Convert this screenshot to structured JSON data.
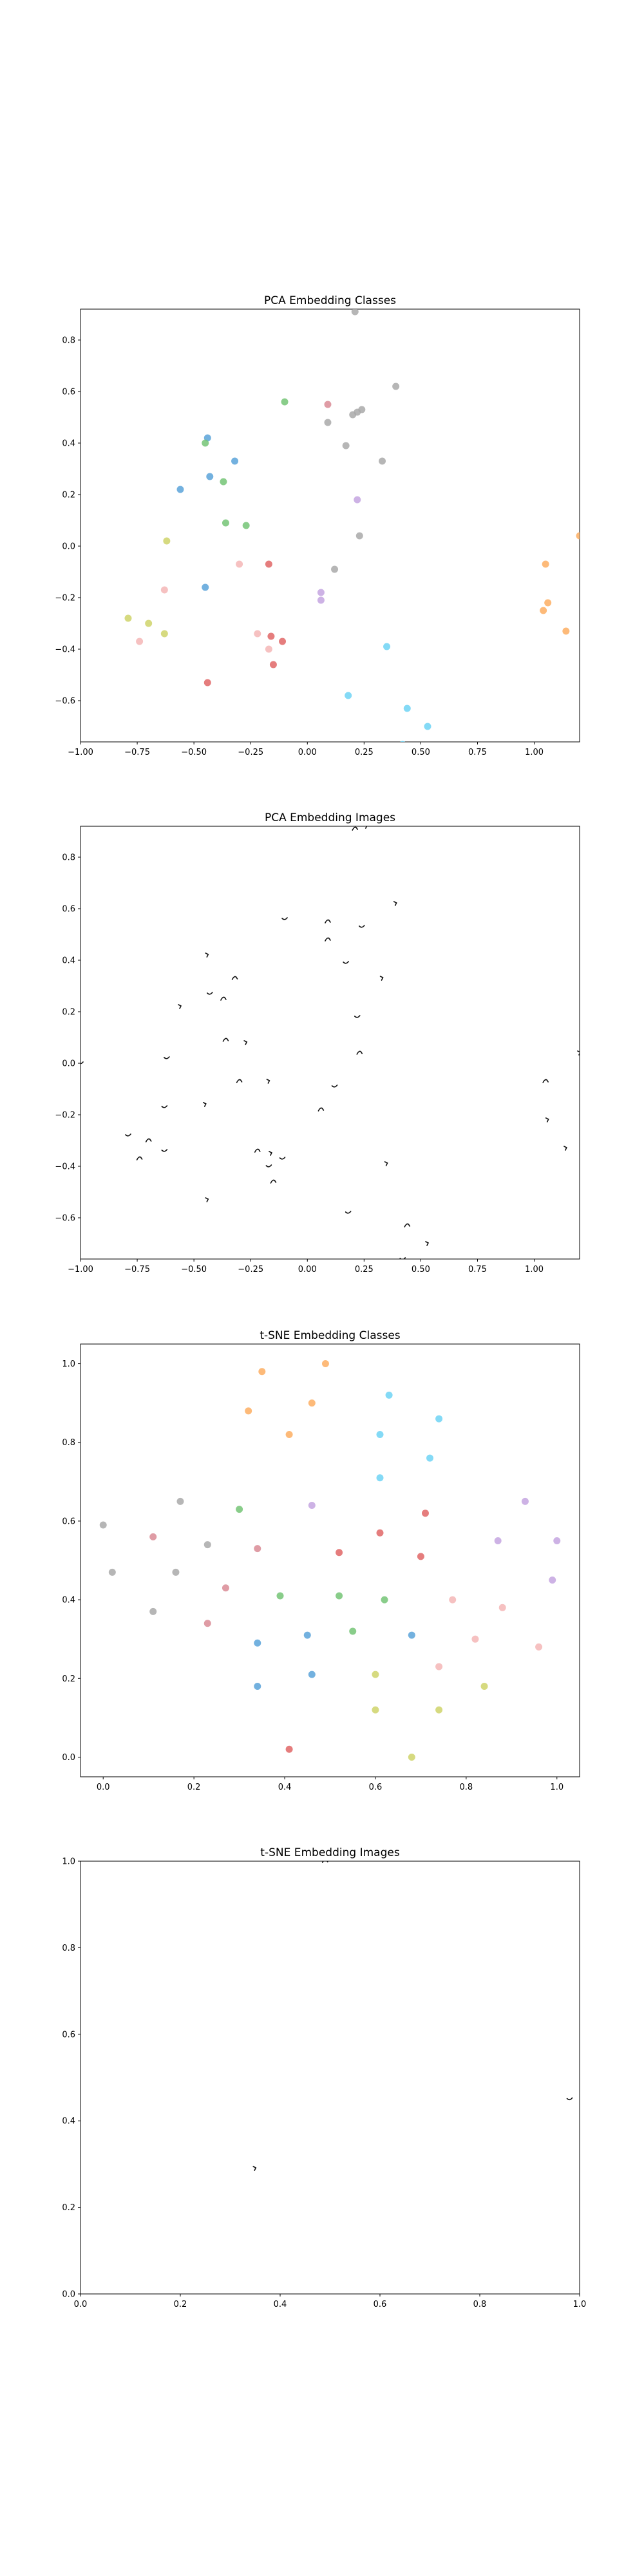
{
  "figure": {
    "background": "#ffffff",
    "axis_color": "#000000"
  },
  "chart_data": [
    {
      "id": "pca-classes",
      "type": "scatter",
      "title": "PCA Embedding Classes",
      "xlim": [
        -1.0,
        1.2
      ],
      "ylim": [
        -0.76,
        0.92
      ],
      "xticks": [
        -1.0,
        -0.75,
        -0.5,
        -0.25,
        0.0,
        0.25,
        0.5,
        0.75,
        1.0
      ],
      "xticklabels": [
        "−1.00",
        "−0.75",
        "−0.50",
        "−0.25",
        "0.00",
        "0.25",
        "0.50",
        "0.75",
        "1.00"
      ],
      "yticks": [
        -0.6,
        -0.4,
        -0.2,
        0.0,
        0.2,
        0.4,
        0.6,
        0.8
      ],
      "yticklabels": [
        "−0.6",
        "−0.4",
        "−0.2",
        "0.0",
        "0.2",
        "0.4",
        "0.6",
        "0.8"
      ],
      "grid": false,
      "marker": "circle",
      "points": [
        {
          "x": 0.21,
          "y": 0.91,
          "color": "#a9a9a9"
        },
        {
          "x": -0.1,
          "y": 0.56,
          "color": "#74c476"
        },
        {
          "x": 0.09,
          "y": 0.55,
          "color": "#d98b95"
        },
        {
          "x": 0.39,
          "y": 0.62,
          "color": "#a9a9a9"
        },
        {
          "x": 0.24,
          "y": 0.53,
          "color": "#a9a9a9"
        },
        {
          "x": 0.22,
          "y": 0.52,
          "color": "#a9a9a9"
        },
        {
          "x": 0.2,
          "y": 0.51,
          "color": "#a9a9a9"
        },
        {
          "x": 0.09,
          "y": 0.48,
          "color": "#a9a9a9"
        },
        {
          "x": -0.44,
          "y": 0.42,
          "color": "#5ba3d9"
        },
        {
          "x": -0.45,
          "y": 0.4,
          "color": "#74c476"
        },
        {
          "x": 0.17,
          "y": 0.39,
          "color": "#a9a9a9"
        },
        {
          "x": -0.32,
          "y": 0.33,
          "color": "#5ba3d9"
        },
        {
          "x": 0.33,
          "y": 0.33,
          "color": "#a9a9a9"
        },
        {
          "x": -0.43,
          "y": 0.27,
          "color": "#5ba3d9"
        },
        {
          "x": -0.37,
          "y": 0.25,
          "color": "#74c476"
        },
        {
          "x": -0.56,
          "y": 0.22,
          "color": "#5ba3d9"
        },
        {
          "x": 0.22,
          "y": 0.18,
          "color": "#c4a5e0"
        },
        {
          "x": -0.36,
          "y": 0.09,
          "color": "#74c476"
        },
        {
          "x": -0.27,
          "y": 0.08,
          "color": "#74c476"
        },
        {
          "x": -0.62,
          "y": 0.02,
          "color": "#cfd36a"
        },
        {
          "x": 0.23,
          "y": 0.04,
          "color": "#a9a9a9"
        },
        {
          "x": 1.2,
          "y": 0.04,
          "color": "#fdae61"
        },
        {
          "x": -0.3,
          "y": -0.07,
          "color": "#f4b6b6"
        },
        {
          "x": -0.17,
          "y": -0.07,
          "color": "#e06666"
        },
        {
          "x": 0.12,
          "y": -0.09,
          "color": "#a9a9a9"
        },
        {
          "x": 1.05,
          "y": -0.07,
          "color": "#fdae61"
        },
        {
          "x": -0.45,
          "y": -0.16,
          "color": "#5ba3d9"
        },
        {
          "x": -0.63,
          "y": -0.17,
          "color": "#f4b6b6"
        },
        {
          "x": 0.06,
          "y": -0.18,
          "color": "#c4a5e0"
        },
        {
          "x": 0.06,
          "y": -0.21,
          "color": "#c4a5e0"
        },
        {
          "x": 1.06,
          "y": -0.22,
          "color": "#fdae61"
        },
        {
          "x": 1.04,
          "y": -0.25,
          "color": "#fdae61"
        },
        {
          "x": -0.79,
          "y": -0.28,
          "color": "#cfd36a"
        },
        {
          "x": -0.7,
          "y": -0.3,
          "color": "#cfd36a"
        },
        {
          "x": 1.14,
          "y": -0.33,
          "color": "#fdae61"
        },
        {
          "x": -0.63,
          "y": -0.34,
          "color": "#cfd36a"
        },
        {
          "x": -0.22,
          "y": -0.34,
          "color": "#f4b6b6"
        },
        {
          "x": -0.16,
          "y": -0.35,
          "color": "#e06666"
        },
        {
          "x": -0.11,
          "y": -0.37,
          "color": "#e06666"
        },
        {
          "x": -0.74,
          "y": -0.37,
          "color": "#f4b6b6"
        },
        {
          "x": 0.35,
          "y": -0.39,
          "color": "#6fd3f5"
        },
        {
          "x": -0.17,
          "y": -0.4,
          "color": "#f4b6b6"
        },
        {
          "x": -0.15,
          "y": -0.46,
          "color": "#e06666"
        },
        {
          "x": -0.44,
          "y": -0.53,
          "color": "#e06666"
        },
        {
          "x": 0.18,
          "y": -0.58,
          "color": "#6fd3f5"
        },
        {
          "x": 0.44,
          "y": -0.63,
          "color": "#6fd3f5"
        },
        {
          "x": 0.53,
          "y": -0.7,
          "color": "#6fd3f5"
        },
        {
          "x": 0.42,
          "y": -0.77,
          "color": "#6fd3f5"
        }
      ]
    },
    {
      "id": "pca-images",
      "type": "scatter",
      "title": "PCA Embedding Images",
      "xlim": [
        -1.0,
        1.2
      ],
      "ylim": [
        -0.76,
        0.92
      ],
      "xticks": [
        -1.0,
        -0.75,
        -0.5,
        -0.25,
        0.0,
        0.25,
        0.5,
        0.75,
        1.0
      ],
      "xticklabels": [
        "−1.00",
        "−0.75",
        "−0.50",
        "−0.25",
        "0.00",
        "0.25",
        "0.50",
        "0.75",
        "1.00"
      ],
      "yticks": [
        -0.6,
        -0.4,
        -0.2,
        0.0,
        0.2,
        0.4,
        0.6,
        0.8
      ],
      "yticklabels": [
        "−0.6",
        "−0.4",
        "−0.2",
        "0.0",
        "0.2",
        "0.4",
        "0.6",
        "0.8"
      ],
      "grid": false,
      "marker": "image-thumbnail",
      "points": [
        {
          "x": 0.21,
          "y": 0.91
        },
        {
          "x": 0.26,
          "y": 0.92
        },
        {
          "x": -0.1,
          "y": 0.56
        },
        {
          "x": 0.09,
          "y": 0.55
        },
        {
          "x": 0.39,
          "y": 0.62
        },
        {
          "x": 0.24,
          "y": 0.53
        },
        {
          "x": 0.09,
          "y": 0.48
        },
        {
          "x": -0.44,
          "y": 0.42
        },
        {
          "x": 0.17,
          "y": 0.39
        },
        {
          "x": -0.32,
          "y": 0.33
        },
        {
          "x": 0.33,
          "y": 0.33
        },
        {
          "x": -0.43,
          "y": 0.27
        },
        {
          "x": -0.37,
          "y": 0.25
        },
        {
          "x": -0.56,
          "y": 0.22
        },
        {
          "x": 0.22,
          "y": 0.18
        },
        {
          "x": -0.36,
          "y": 0.09
        },
        {
          "x": -0.27,
          "y": 0.08
        },
        {
          "x": -0.62,
          "y": 0.02
        },
        {
          "x": 0.23,
          "y": 0.04
        },
        {
          "x": 1.2,
          "y": 0.04
        },
        {
          "x": -1.0,
          "y": 0.0
        },
        {
          "x": -0.3,
          "y": -0.07
        },
        {
          "x": -0.17,
          "y": -0.07
        },
        {
          "x": 0.12,
          "y": -0.09
        },
        {
          "x": 1.05,
          "y": -0.07
        },
        {
          "x": -0.45,
          "y": -0.16
        },
        {
          "x": -0.63,
          "y": -0.17
        },
        {
          "x": 0.06,
          "y": -0.18
        },
        {
          "x": 1.06,
          "y": -0.22
        },
        {
          "x": -0.79,
          "y": -0.28
        },
        {
          "x": -0.7,
          "y": -0.3
        },
        {
          "x": 1.14,
          "y": -0.33
        },
        {
          "x": -0.63,
          "y": -0.34
        },
        {
          "x": -0.22,
          "y": -0.34
        },
        {
          "x": -0.16,
          "y": -0.35
        },
        {
          "x": -0.11,
          "y": -0.37
        },
        {
          "x": -0.74,
          "y": -0.37
        },
        {
          "x": 0.35,
          "y": -0.39
        },
        {
          "x": -0.17,
          "y": -0.4
        },
        {
          "x": -0.15,
          "y": -0.46
        },
        {
          "x": -0.44,
          "y": -0.53
        },
        {
          "x": 0.18,
          "y": -0.58
        },
        {
          "x": 0.44,
          "y": -0.63
        },
        {
          "x": 0.53,
          "y": -0.7
        },
        {
          "x": 0.42,
          "y": -0.76
        }
      ]
    },
    {
      "id": "tsne-classes",
      "type": "scatter",
      "title": "t-SNE Embedding Classes",
      "xlim": [
        -0.05,
        1.05
      ],
      "ylim": [
        -0.05,
        1.05
      ],
      "xticks": [
        0.0,
        0.2,
        0.4,
        0.6,
        0.8,
        1.0
      ],
      "xticklabels": [
        "0.0",
        "0.2",
        "0.4",
        "0.6",
        "0.8",
        "1.0"
      ],
      "yticks": [
        0.0,
        0.2,
        0.4,
        0.6,
        0.8,
        1.0
      ],
      "yticklabels": [
        "0.0",
        "0.2",
        "0.4",
        "0.6",
        "0.8",
        "1.0"
      ],
      "grid": false,
      "marker": "circle",
      "points": [
        {
          "x": 0.35,
          "y": 0.98,
          "color": "#fdae61"
        },
        {
          "x": 0.49,
          "y": 1.0,
          "color": "#fdae61"
        },
        {
          "x": 0.32,
          "y": 0.88,
          "color": "#fdae61"
        },
        {
          "x": 0.46,
          "y": 0.9,
          "color": "#fdae61"
        },
        {
          "x": 0.41,
          "y": 0.82,
          "color": "#fdae61"
        },
        {
          "x": 0.63,
          "y": 0.92,
          "color": "#6fd3f5"
        },
        {
          "x": 0.74,
          "y": 0.86,
          "color": "#6fd3f5"
        },
        {
          "x": 0.61,
          "y": 0.82,
          "color": "#6fd3f5"
        },
        {
          "x": 0.72,
          "y": 0.76,
          "color": "#6fd3f5"
        },
        {
          "x": 0.61,
          "y": 0.71,
          "color": "#6fd3f5"
        },
        {
          "x": 0.17,
          "y": 0.65,
          "color": "#a9a9a9"
        },
        {
          "x": 0.3,
          "y": 0.63,
          "color": "#74c476"
        },
        {
          "x": 0.46,
          "y": 0.64,
          "color": "#c4a5e0"
        },
        {
          "x": 0.71,
          "y": 0.62,
          "color": "#e06666"
        },
        {
          "x": 0.93,
          "y": 0.65,
          "color": "#c4a5e0"
        },
        {
          "x": 0.0,
          "y": 0.59,
          "color": "#a9a9a9"
        },
        {
          "x": 0.11,
          "y": 0.56,
          "color": "#d98b95"
        },
        {
          "x": 0.23,
          "y": 0.54,
          "color": "#a9a9a9"
        },
        {
          "x": 0.34,
          "y": 0.53,
          "color": "#d98b95"
        },
        {
          "x": 0.52,
          "y": 0.52,
          "color": "#e06666"
        },
        {
          "x": 0.61,
          "y": 0.57,
          "color": "#e06666"
        },
        {
          "x": 0.7,
          "y": 0.51,
          "color": "#e06666"
        },
        {
          "x": 0.87,
          "y": 0.55,
          "color": "#c4a5e0"
        },
        {
          "x": 1.0,
          "y": 0.55,
          "color": "#c4a5e0"
        },
        {
          "x": 0.02,
          "y": 0.47,
          "color": "#a9a9a9"
        },
        {
          "x": 0.16,
          "y": 0.47,
          "color": "#a9a9a9"
        },
        {
          "x": 0.27,
          "y": 0.43,
          "color": "#d98b95"
        },
        {
          "x": 0.39,
          "y": 0.41,
          "color": "#74c476"
        },
        {
          "x": 0.52,
          "y": 0.41,
          "color": "#74c476"
        },
        {
          "x": 0.62,
          "y": 0.4,
          "color": "#74c476"
        },
        {
          "x": 0.77,
          "y": 0.4,
          "color": "#f4b6b6"
        },
        {
          "x": 0.99,
          "y": 0.45,
          "color": "#c4a5e0"
        },
        {
          "x": 0.11,
          "y": 0.37,
          "color": "#a9a9a9"
        },
        {
          "x": 0.88,
          "y": 0.38,
          "color": "#f4b6b6"
        },
        {
          "x": 0.23,
          "y": 0.34,
          "color": "#d98b95"
        },
        {
          "x": 0.55,
          "y": 0.32,
          "color": "#74c476"
        },
        {
          "x": 0.45,
          "y": 0.31,
          "color": "#5ba3d9"
        },
        {
          "x": 0.68,
          "y": 0.31,
          "color": "#5ba3d9"
        },
        {
          "x": 0.82,
          "y": 0.3,
          "color": "#f4b6b6"
        },
        {
          "x": 0.34,
          "y": 0.29,
          "color": "#5ba3d9"
        },
        {
          "x": 0.96,
          "y": 0.28,
          "color": "#f4b6b6"
        },
        {
          "x": 0.74,
          "y": 0.23,
          "color": "#f4b6b6"
        },
        {
          "x": 0.6,
          "y": 0.21,
          "color": "#cfd36a"
        },
        {
          "x": 0.46,
          "y": 0.21,
          "color": "#5ba3d9"
        },
        {
          "x": 0.34,
          "y": 0.18,
          "color": "#5ba3d9"
        },
        {
          "x": 0.84,
          "y": 0.18,
          "color": "#cfd36a"
        },
        {
          "x": 0.6,
          "y": 0.12,
          "color": "#cfd36a"
        },
        {
          "x": 0.74,
          "y": 0.12,
          "color": "#cfd36a"
        },
        {
          "x": 0.41,
          "y": 0.02,
          "color": "#e06666"
        },
        {
          "x": 0.68,
          "y": 0.0,
          "color": "#cfd36a"
        }
      ]
    },
    {
      "id": "tsne-images",
      "type": "scatter",
      "title": "t-SNE Embedding Images",
      "xlim": [
        0.0,
        1.0
      ],
      "ylim": [
        0.0,
        1.0
      ],
      "xticks": [
        0.0,
        0.2,
        0.4,
        0.6,
        0.8,
        1.0
      ],
      "xticklabels": [
        "0.0",
        "0.2",
        "0.4",
        "0.6",
        "0.8",
        "1.0"
      ],
      "yticks": [
        0.0,
        0.2,
        0.4,
        0.6,
        0.8,
        1.0
      ],
      "yticklabels": [
        "0.0",
        "0.2",
        "0.4",
        "0.6",
        "0.8",
        "1.0"
      ],
      "grid": false,
      "marker": "image-thumbnail",
      "points": [
        {
          "x": 0.49,
          "y": 1.0
        },
        {
          "x": 0.35,
          "y": 0.29
        },
        {
          "x": 0.98,
          "y": 0.45
        }
      ]
    }
  ]
}
